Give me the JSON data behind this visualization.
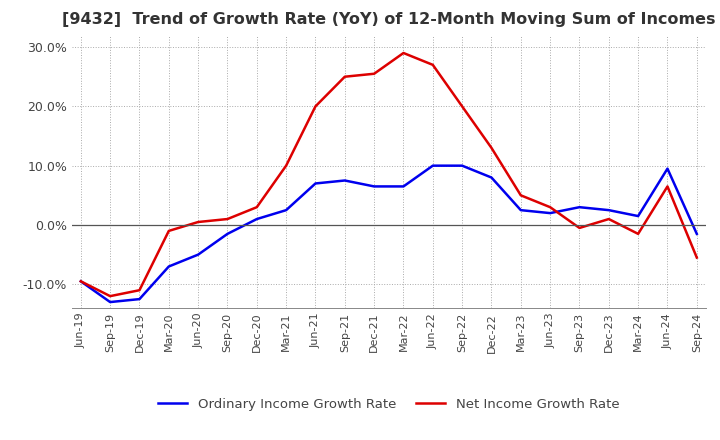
{
  "title": "[9432]  Trend of Growth Rate (YoY) of 12-Month Moving Sum of Incomes",
  "title_fontsize": 11.5,
  "ylim": [
    -14,
    32
  ],
  "yticks": [
    -10,
    0,
    10,
    20,
    30
  ],
  "background_color": "#ffffff",
  "grid_color": "#aaaaaa",
  "x_labels": [
    "Jun-19",
    "Sep-19",
    "Dec-19",
    "Mar-20",
    "Jun-20",
    "Sep-20",
    "Dec-20",
    "Mar-21",
    "Jun-21",
    "Sep-21",
    "Dec-21",
    "Mar-22",
    "Jun-22",
    "Sep-22",
    "Dec-22",
    "Mar-23",
    "Jun-23",
    "Sep-23",
    "Dec-23",
    "Mar-24",
    "Jun-24",
    "Sep-24"
  ],
  "ordinary_income": [
    -9.5,
    -13.0,
    -12.5,
    -7.0,
    -5.0,
    -1.5,
    1.0,
    2.5,
    7.0,
    7.5,
    6.5,
    6.5,
    10.0,
    10.0,
    8.0,
    2.5,
    2.0,
    3.0,
    2.5,
    1.5,
    9.5,
    -1.5
  ],
  "net_income": [
    -9.5,
    -12.0,
    -11.0,
    -1.0,
    0.5,
    1.0,
    3.0,
    10.0,
    20.0,
    25.0,
    25.5,
    29.0,
    27.0,
    20.0,
    13.0,
    5.0,
    3.0,
    -0.5,
    1.0,
    -1.5,
    6.5,
    -5.5
  ],
  "ordinary_color": "#0000ee",
  "net_color": "#dd0000",
  "line_width": 1.8,
  "legend_ordinary": "Ordinary Income Growth Rate",
  "legend_net": "Net Income Growth Rate"
}
